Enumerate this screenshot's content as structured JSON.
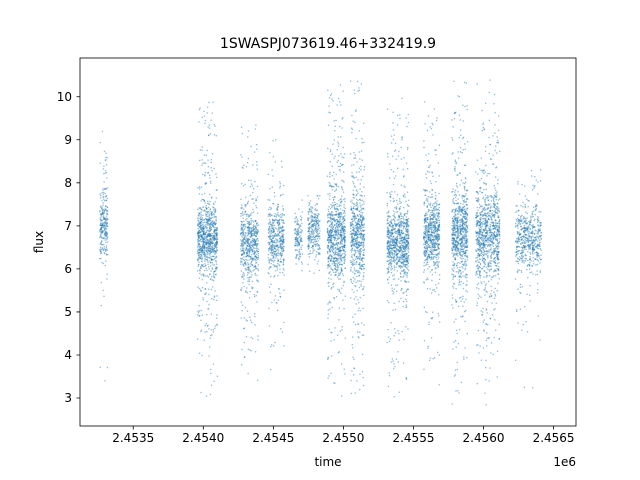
{
  "chart_data": {
    "type": "scatter",
    "title": "1SWASPJ073619.46+332419.9",
    "xlabel": "time",
    "ylabel": "flux",
    "x_offset_text": "1e6",
    "xlim": [
      2453120,
      2456660
    ],
    "ylim": [
      2.35,
      10.9
    ],
    "x_ticks": [
      {
        "value": 2453500,
        "label": "2.4535"
      },
      {
        "value": 2454000,
        "label": "2.4540"
      },
      {
        "value": 2454500,
        "label": "2.4545"
      },
      {
        "value": 2455000,
        "label": "2.4550"
      },
      {
        "value": 2455500,
        "label": "2.4555"
      },
      {
        "value": 2456000,
        "label": "2.4560"
      },
      {
        "value": 2456500,
        "label": "2.4565"
      }
    ],
    "y_ticks": [
      {
        "value": 3,
        "label": "3"
      },
      {
        "value": 4,
        "label": "4"
      },
      {
        "value": 5,
        "label": "5"
      },
      {
        "value": 6,
        "label": "6"
      },
      {
        "value": 7,
        "label": "7"
      },
      {
        "value": 8,
        "label": "8"
      },
      {
        "value": 9,
        "label": "9"
      },
      {
        "value": 10,
        "label": "10"
      }
    ],
    "grid": false,
    "legend": null,
    "marker": {
      "color": "#1f77b4",
      "alpha": 0.5,
      "size": 1.3
    },
    "clusters": [
      {
        "t": 2453290,
        "w": 57,
        "n": 260,
        "mean": 7.0,
        "core_std": 0.45,
        "core_frac": 0.8,
        "tail_std": 1.5,
        "lo": 3.4,
        "hi": 9.7
      },
      {
        "t": 2454030,
        "w": 143,
        "n": 900,
        "mean": 6.7,
        "core_std": 0.4,
        "core_frac": 0.75,
        "tail_std": 1.8,
        "lo": 2.8,
        "hi": 9.9
      },
      {
        "t": 2454330,
        "w": 128,
        "n": 600,
        "mean": 6.6,
        "core_std": 0.4,
        "core_frac": 0.75,
        "tail_std": 1.7,
        "lo": 2.9,
        "hi": 9.4
      },
      {
        "t": 2454520,
        "w": 114,
        "n": 450,
        "mean": 6.7,
        "core_std": 0.35,
        "core_frac": 0.78,
        "tail_std": 1.5,
        "lo": 3.3,
        "hi": 9.0
      },
      {
        "t": 2454680,
        "w": 57,
        "n": 130,
        "mean": 6.7,
        "core_std": 0.3,
        "core_frac": 0.9,
        "tail_std": 0.8,
        "lo": 5.8,
        "hi": 7.6
      },
      {
        "t": 2454790,
        "w": 86,
        "n": 260,
        "mean": 6.9,
        "core_std": 0.3,
        "core_frac": 0.85,
        "tail_std": 0.8,
        "lo": 5.9,
        "hi": 7.7
      },
      {
        "t": 2454950,
        "w": 128,
        "n": 800,
        "mean": 6.7,
        "core_std": 0.45,
        "core_frac": 0.72,
        "tail_std": 1.9,
        "lo": 2.9,
        "hi": 10.3
      },
      {
        "t": 2455100,
        "w": 100,
        "n": 600,
        "mean": 6.8,
        "core_std": 0.45,
        "core_frac": 0.72,
        "tail_std": 1.9,
        "lo": 3.0,
        "hi": 10.5
      },
      {
        "t": 2455390,
        "w": 157,
        "n": 900,
        "mean": 6.6,
        "core_std": 0.4,
        "core_frac": 0.75,
        "tail_std": 1.8,
        "lo": 2.7,
        "hi": 10.0
      },
      {
        "t": 2455630,
        "w": 114,
        "n": 650,
        "mean": 6.8,
        "core_std": 0.4,
        "core_frac": 0.75,
        "tail_std": 1.8,
        "lo": 3.0,
        "hi": 10.2
      },
      {
        "t": 2455830,
        "w": 114,
        "n": 750,
        "mean": 6.8,
        "core_std": 0.45,
        "core_frac": 0.72,
        "tail_std": 1.9,
        "lo": 2.8,
        "hi": 10.4
      },
      {
        "t": 2456030,
        "w": 171,
        "n": 950,
        "mean": 6.8,
        "core_std": 0.5,
        "core_frac": 0.7,
        "tail_std": 1.9,
        "lo": 2.7,
        "hi": 10.5
      },
      {
        "t": 2456320,
        "w": 186,
        "n": 550,
        "mean": 6.7,
        "core_std": 0.35,
        "core_frac": 0.8,
        "tail_std": 1.4,
        "lo": 3.2,
        "hi": 8.3
      }
    ]
  }
}
